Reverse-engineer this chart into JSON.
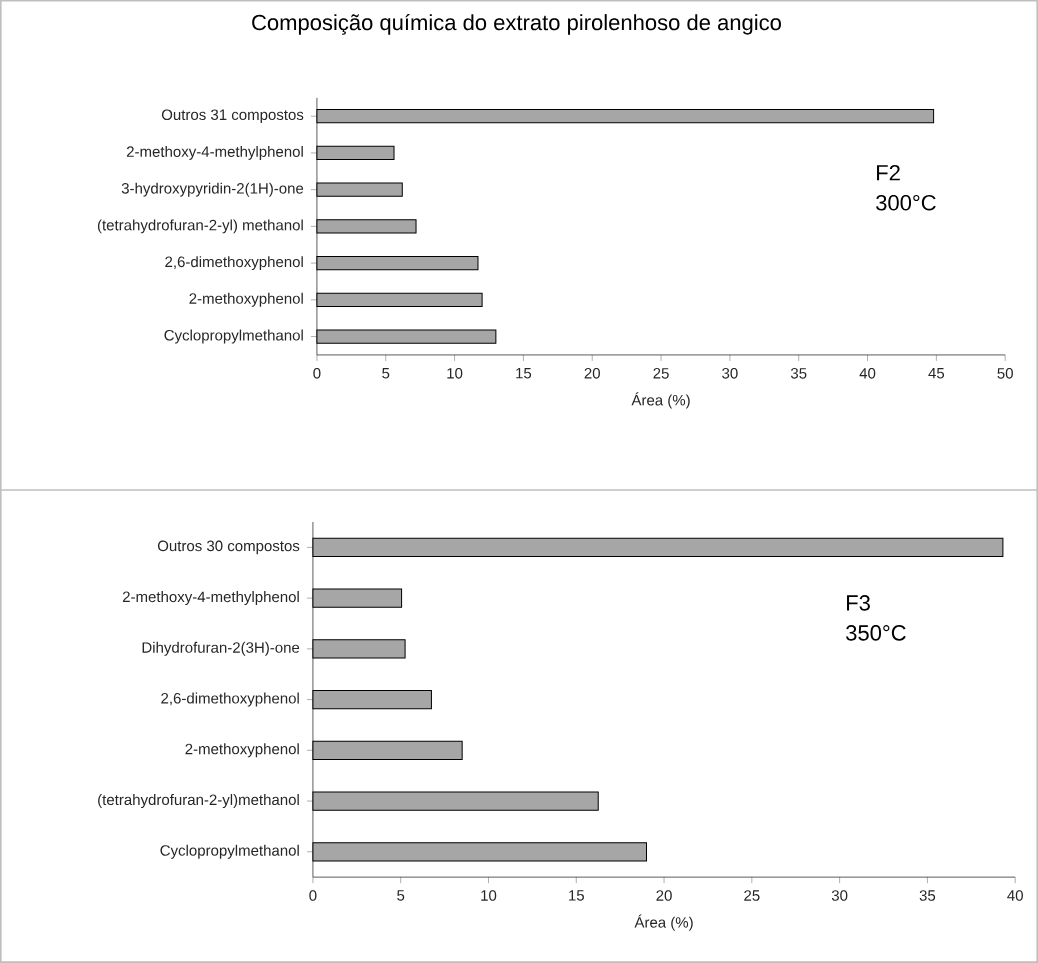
{
  "chart_data": [
    {
      "type": "bar",
      "orientation": "horizontal",
      "title": "Composição química do extrato pirolenhoso de angico",
      "xlabel": "Área (%)",
      "categories": [
        "Outros 31 compostos",
        "2-methoxy-4-methylphenol",
        "3-hydroxypyridin-2(1H)-one",
        "(tetrahydrofuran-2-yl) methanol",
        "2,6-dimethoxyphenol",
        "2-methoxyphenol",
        "Cyclopropylmethanol"
      ],
      "values": [
        44.8,
        5.6,
        6.2,
        7.2,
        11.7,
        12.0,
        13.0
      ],
      "color": "#a6a6a6",
      "xlim": [
        0,
        50
      ],
      "xticks": [
        0,
        5,
        10,
        15,
        20,
        25,
        30,
        35,
        40,
        45,
        50
      ],
      "grid": false,
      "annotations": [
        "F2",
        "300°C"
      ]
    },
    {
      "type": "bar",
      "orientation": "horizontal",
      "xlabel": "Área (%)",
      "categories": [
        "Outros 30 compostos",
        "2-methoxy-4-methylphenol",
        "Dihydrofuran-2(3H)-one",
        "2,6-dimethoxyphenol",
        "2-methoxyphenol",
        "(tetrahydrofuran-2-yl)methanol",
        "Cyclopropylmethanol"
      ],
      "values": [
        39.3,
        5.05,
        5.25,
        6.75,
        8.5,
        16.25,
        19.0
      ],
      "color": "#a6a6a6",
      "xlim": [
        0,
        40
      ],
      "xticks": [
        0,
        5,
        10,
        15,
        20,
        25,
        30,
        35,
        40
      ],
      "grid": false,
      "annotations": [
        "F3",
        "350°C"
      ]
    }
  ]
}
